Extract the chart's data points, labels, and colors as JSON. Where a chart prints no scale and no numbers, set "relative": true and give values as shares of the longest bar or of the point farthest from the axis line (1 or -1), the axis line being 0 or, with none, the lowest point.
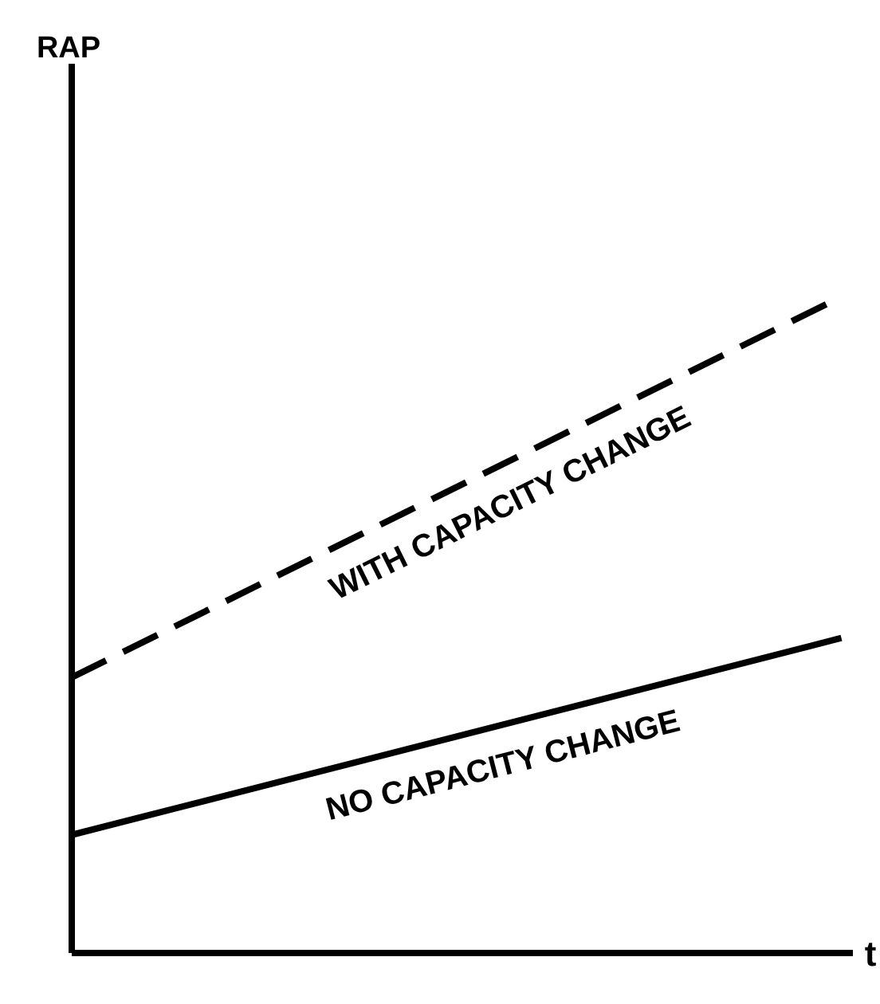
{
  "chart_data": {
    "type": "line",
    "relative": true,
    "annotations": [
      "RAP"
    ],
    "xlabel": "t",
    "categories": [
      null,
      null
    ],
    "tick_labels": false,
    "grid": false,
    "legend": false,
    "marker": "none",
    "series": [
      {
        "name": "WITH CAPACITY CHANGE",
        "color": "#000000",
        "line_style": "dashed",
        "values": [
          0.42,
          1
        ]
      },
      {
        "name": "NO CAPACITY CHANGE",
        "color": "#000000",
        "line_style": "solid",
        "values": [
          0.18,
          0.48
        ]
      }
    ]
  }
}
